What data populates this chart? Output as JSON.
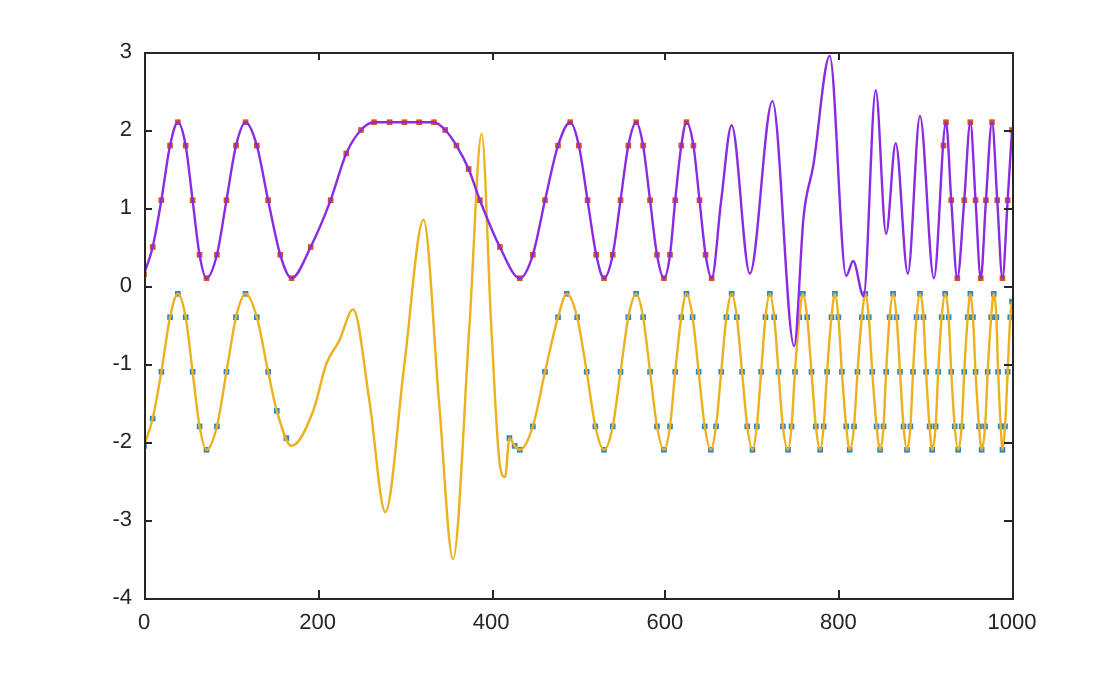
{
  "chart_data": {
    "type": "line",
    "xlim": [
      0,
      1000
    ],
    "xticks": [
      0,
      200,
      400,
      600,
      800,
      1000
    ],
    "ylim": [
      -4,
      3
    ],
    "yticks": [
      -4,
      -3,
      -2,
      -1,
      0,
      1,
      2,
      3
    ],
    "grid": false,
    "legend": false,
    "series": [
      {
        "type": "scatter",
        "marker": "square",
        "color": "#d95319",
        "x": [
          0,
          10,
          20,
          30,
          39,
          48,
          56,
          64,
          72,
          84,
          95,
          106,
          117,
          130,
          143,
          157,
          170,
          192,
          215,
          233,
          250,
          265,
          283,
          300,
          317,
          334,
          347,
          360,
          374,
          387,
          410,
          433,
          448,
          462,
          477,
          491,
          501,
          511,
          521,
          530,
          540,
          549,
          558,
          567,
          575,
          583,
          591,
          599,
          606,
          612,
          619,
          625,
          633,
          640,
          647,
          654,
          921,
          924,
          930,
          937,
          945,
          952,
          958,
          964,
          970,
          977,
          983,
          989,
          995,
          1000
        ],
        "values": [
          0.15,
          0.5,
          1.1,
          1.8,
          2.1,
          1.8,
          1.1,
          0.4,
          0.1,
          0.4,
          1.1,
          1.8,
          2.1,
          1.8,
          1.1,
          0.4,
          0.1,
          0.5,
          1.1,
          1.7,
          2.0,
          2.1,
          2.1,
          2.1,
          2.1,
          2.1,
          2.0,
          1.8,
          1.5,
          1.1,
          0.5,
          0.1,
          0.4,
          1.1,
          1.8,
          2.1,
          1.8,
          1.1,
          0.4,
          0.1,
          0.4,
          1.1,
          1.8,
          2.1,
          1.8,
          1.1,
          0.4,
          0.1,
          0.4,
          1.1,
          1.8,
          2.1,
          1.8,
          1.1,
          0.4,
          0.1,
          1.8,
          2.1,
          1.1,
          0.1,
          1.1,
          2.1,
          1.1,
          0.1,
          1.1,
          2.1,
          1.1,
          0.1,
          1.1,
          2.0
        ]
      },
      {
        "type": "line",
        "marker": "none",
        "color": "#8a2be2",
        "x": [
          0,
          10,
          20,
          30,
          39,
          48,
          56,
          64,
          72,
          84,
          95,
          106,
          117,
          130,
          143,
          157,
          170,
          192,
          215,
          233,
          250,
          265,
          283,
          300,
          317,
          334,
          347,
          360,
          374,
          387,
          410,
          433,
          448,
          462,
          477,
          491,
          501,
          511,
          521,
          530,
          540,
          549,
          558,
          567,
          575,
          583,
          591,
          599,
          606,
          612,
          619,
          625,
          633,
          640,
          647,
          654,
          665,
          677,
          698,
          724,
          749,
          760,
          771,
          790,
          809,
          817,
          829,
          843,
          855,
          866,
          880,
          894,
          910,
          924,
          930,
          937,
          945,
          952,
          958,
          964,
          970,
          977,
          983,
          989,
          995,
          1000
        ],
        "values": [
          0.15,
          0.5,
          1.1,
          1.8,
          2.1,
          1.8,
          1.1,
          0.4,
          0.1,
          0.4,
          1.1,
          1.8,
          2.1,
          1.8,
          1.1,
          0.4,
          0.1,
          0.5,
          1.1,
          1.7,
          2.0,
          2.1,
          2.1,
          2.1,
          2.1,
          2.1,
          2.0,
          1.8,
          1.5,
          1.1,
          0.5,
          0.1,
          0.4,
          1.1,
          1.8,
          2.1,
          1.8,
          1.1,
          0.4,
          0.1,
          0.4,
          1.1,
          1.8,
          2.1,
          1.8,
          1.1,
          0.4,
          0.1,
          0.4,
          1.1,
          1.8,
          2.1,
          1.8,
          1.1,
          0.4,
          0.1,
          1.1,
          2.06,
          0.16,
          2.37,
          -0.77,
          0.9,
          1.54,
          2.95,
          0.13,
          0.32,
          -0.13,
          2.51,
          0.67,
          1.83,
          0.16,
          2.18,
          0.1,
          2.1,
          1.1,
          0.1,
          1.1,
          2.1,
          1.1,
          0.1,
          1.1,
          2.1,
          1.1,
          0.1,
          1.1,
          2.0
        ]
      },
      {
        "type": "scatter",
        "marker": "square",
        "color": "#2f86c8",
        "x": [
          0,
          10,
          20,
          30,
          39,
          48,
          56,
          64,
          72,
          84,
          95,
          106,
          117,
          130,
          143,
          153,
          164,
          421,
          427,
          433,
          448,
          462,
          477,
          487,
          499,
          510,
          520,
          530,
          540,
          549,
          558,
          567,
          575,
          583,
          591,
          599,
          606,
          612,
          619,
          625,
          632,
          639,
          646,
          653,
          659,
          665,
          671,
          677,
          683,
          689,
          695,
          701,
          706,
          711,
          716,
          721,
          726,
          731,
          736,
          742,
          746,
          750,
          755,
          759,
          764,
          769,
          774,
          779,
          783,
          787,
          792,
          796,
          800,
          804,
          809,
          813,
          818,
          822,
          827,
          831,
          835,
          839,
          844,
          848,
          852,
          855,
          859,
          863,
          867,
          871,
          875,
          879,
          883,
          886,
          890,
          894,
          898,
          901,
          905,
          908,
          912,
          915,
          919,
          923,
          927,
          930,
          934,
          938,
          942,
          945,
          949,
          952,
          955,
          958,
          962,
          965,
          969,
          972,
          976,
          979,
          982,
          984,
          987,
          989,
          992,
          995,
          998,
          1000
        ],
        "values": [
          -2.05,
          -1.7,
          -1.1,
          -0.4,
          -0.1,
          -0.4,
          -1.1,
          -1.8,
          -2.1,
          -1.8,
          -1.1,
          -0.4,
          -0.1,
          -0.4,
          -1.1,
          -1.6,
          -1.95,
          -1.95,
          -2.05,
          -2.1,
          -1.8,
          -1.1,
          -0.4,
          -0.1,
          -0.4,
          -1.1,
          -1.8,
          -2.1,
          -1.8,
          -1.1,
          -0.4,
          -0.1,
          -0.4,
          -1.1,
          -1.8,
          -2.1,
          -1.8,
          -1.1,
          -0.4,
          -0.1,
          -0.4,
          -1.1,
          -1.8,
          -2.1,
          -1.8,
          -1.1,
          -0.4,
          -0.1,
          -0.4,
          -1.1,
          -1.8,
          -2.1,
          -1.8,
          -1.1,
          -0.4,
          -0.1,
          -0.4,
          -1.1,
          -1.8,
          -2.1,
          -1.8,
          -1.1,
          -0.4,
          -0.1,
          -0.4,
          -1.1,
          -1.8,
          -2.1,
          -1.8,
          -1.1,
          -0.4,
          -0.1,
          -0.4,
          -1.1,
          -1.8,
          -2.1,
          -1.8,
          -1.1,
          -0.4,
          -0.1,
          -0.4,
          -1.1,
          -1.8,
          -2.1,
          -1.8,
          -1.1,
          -0.4,
          -0.1,
          -0.4,
          -1.1,
          -1.8,
          -2.1,
          -1.8,
          -1.1,
          -0.4,
          -0.1,
          -0.4,
          -1.1,
          -1.8,
          -2.1,
          -1.8,
          -1.1,
          -0.4,
          -0.1,
          -0.4,
          -1.1,
          -1.8,
          -2.1,
          -1.8,
          -1.1,
          -0.4,
          -0.1,
          -0.4,
          -1.1,
          -1.8,
          -2.1,
          -1.8,
          -1.1,
          -0.4,
          -0.1,
          -0.4,
          -1.1,
          -1.8,
          -2.1,
          -1.8,
          -1.1,
          -0.4,
          -0.2
        ]
      },
      {
        "type": "line",
        "marker": "none",
        "color": "#edb120",
        "x": [
          0,
          10,
          20,
          30,
          39,
          48,
          56,
          64,
          72,
          84,
          95,
          106,
          117,
          130,
          143,
          153,
          170,
          195,
          210,
          225,
          241,
          260,
          278,
          300,
          322,
          340,
          356,
          375,
          389,
          400,
          410,
          416,
          421,
          427,
          433,
          448,
          462,
          477,
          487,
          499,
          510,
          520,
          530,
          540,
          549,
          558,
          567,
          575,
          583,
          591,
          599,
          606,
          612,
          619,
          625,
          632,
          639,
          646,
          653,
          659,
          665,
          671,
          677,
          683,
          689,
          695,
          701,
          706,
          711,
          716,
          721,
          726,
          731,
          736,
          742,
          746,
          750,
          755,
          759,
          764,
          769,
          774,
          779,
          783,
          787,
          792,
          796,
          800,
          804,
          809,
          813,
          818,
          822,
          827,
          831,
          835,
          839,
          844,
          848,
          852,
          855,
          859,
          863,
          867,
          871,
          875,
          879,
          883,
          886,
          890,
          894,
          898,
          901,
          905,
          908,
          912,
          915,
          919,
          923,
          927,
          930,
          934,
          938,
          942,
          945,
          949,
          952,
          955,
          958,
          962,
          965,
          969,
          972,
          976,
          979,
          982,
          984,
          987,
          989,
          992,
          995,
          998,
          1000
        ],
        "values": [
          -2.05,
          -1.7,
          -1.1,
          -0.4,
          -0.1,
          -0.4,
          -1.1,
          -1.8,
          -2.1,
          -1.8,
          -1.1,
          -0.4,
          -0.1,
          -0.4,
          -1.1,
          -1.6,
          -2.05,
          -1.6,
          -1.0,
          -0.7,
          -0.3,
          -1.5,
          -2.9,
          -1.0,
          0.85,
          -1.5,
          -3.5,
          -0.5,
          1.95,
          -0.5,
          -2.3,
          -2.45,
          -1.95,
          -2.05,
          -2.1,
          -1.8,
          -1.1,
          -0.4,
          -0.1,
          -0.4,
          -1.1,
          -1.8,
          -2.1,
          -1.8,
          -1.1,
          -0.4,
          -0.1,
          -0.4,
          -1.1,
          -1.8,
          -2.1,
          -1.8,
          -1.1,
          -0.4,
          -0.1,
          -0.4,
          -1.1,
          -1.8,
          -2.1,
          -1.8,
          -1.1,
          -0.4,
          -0.1,
          -0.4,
          -1.1,
          -1.8,
          -2.1,
          -1.8,
          -1.1,
          -0.4,
          -0.1,
          -0.4,
          -1.1,
          -1.8,
          -2.1,
          -1.8,
          -1.1,
          -0.4,
          -0.1,
          -0.4,
          -1.1,
          -1.8,
          -2.1,
          -1.8,
          -1.1,
          -0.4,
          -0.1,
          -0.4,
          -1.1,
          -1.8,
          -2.1,
          -1.8,
          -1.1,
          -0.4,
          -0.1,
          -0.4,
          -1.1,
          -1.8,
          -2.1,
          -1.8,
          -1.1,
          -0.4,
          -0.1,
          -0.4,
          -1.1,
          -1.8,
          -2.1,
          -1.8,
          -1.1,
          -0.4,
          -0.1,
          -0.4,
          -1.1,
          -1.8,
          -2.1,
          -1.8,
          -1.1,
          -0.4,
          -0.1,
          -0.4,
          -1.1,
          -1.8,
          -2.1,
          -1.8,
          -1.1,
          -0.4,
          -0.1,
          -0.4,
          -1.1,
          -1.8,
          -2.1,
          -1.8,
          -1.1,
          -0.4,
          -0.1,
          -0.4,
          -1.1,
          -1.8,
          -2.1,
          -1.8,
          -1.1,
          -0.4,
          -0.2
        ]
      }
    ]
  }
}
